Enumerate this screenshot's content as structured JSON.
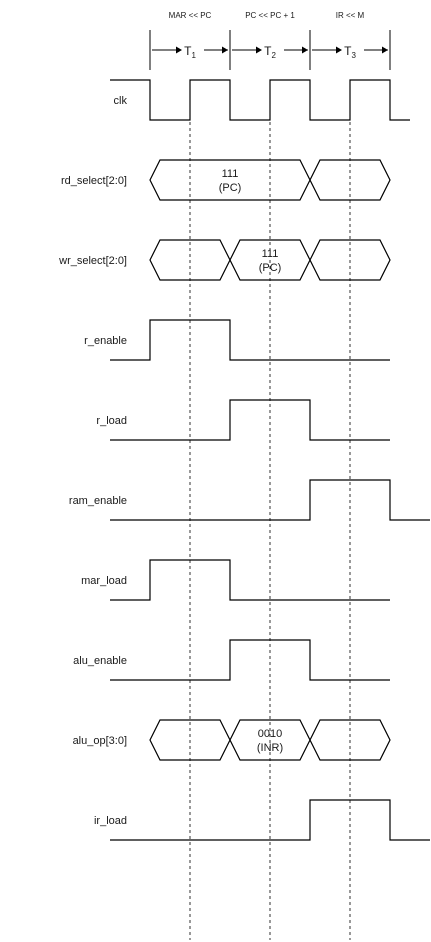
{
  "phases": [
    {
      "op": "MAR << PC",
      "t": "T",
      "sub": "1"
    },
    {
      "op": "PC << PC + 1",
      "t": "T",
      "sub": "2"
    },
    {
      "op": "IR << M",
      "t": "T",
      "sub": "3"
    }
  ],
  "signals": [
    {
      "id": "clk",
      "label": "clk",
      "type": "clock"
    },
    {
      "id": "rd_select",
      "label": "rd_select[2:0]",
      "type": "bus",
      "segments": [
        {
          "from": 0,
          "to": 2,
          "kind": "value",
          "line1": "111",
          "line2": "(PC)"
        },
        {
          "from": 2,
          "to": 3,
          "kind": "dontcare"
        }
      ]
    },
    {
      "id": "wr_select",
      "label": "wr_select[2:0]",
      "type": "bus",
      "segments": [
        {
          "from": 0,
          "to": 1,
          "kind": "dontcare"
        },
        {
          "from": 1,
          "to": 2,
          "kind": "value",
          "line1": "111",
          "line2": "(PC)"
        },
        {
          "from": 2,
          "to": 3,
          "kind": "dontcare"
        }
      ]
    },
    {
      "id": "r_enable",
      "label": "r_enable",
      "type": "digital",
      "high": [
        [
          0,
          1
        ]
      ],
      "tail": false
    },
    {
      "id": "r_load",
      "label": "r_load",
      "type": "digital",
      "high": [
        [
          1,
          2
        ]
      ],
      "tail": false
    },
    {
      "id": "ram_enable",
      "label": "ram_enable",
      "type": "digital",
      "high": [
        [
          2,
          3
        ]
      ],
      "tail": true
    },
    {
      "id": "mar_load",
      "label": "mar_load",
      "type": "digital",
      "high": [
        [
          0,
          1
        ]
      ],
      "tail": false
    },
    {
      "id": "alu_enable",
      "label": "alu_enable",
      "type": "digital",
      "high": [
        [
          1,
          2
        ]
      ],
      "tail": false
    },
    {
      "id": "alu_op",
      "label": "alu_op[3:0]",
      "type": "bus",
      "segments": [
        {
          "from": 0,
          "to": 1,
          "kind": "dontcare"
        },
        {
          "from": 1,
          "to": 2,
          "kind": "value",
          "line1": "0010",
          "line2": "(INR)"
        },
        {
          "from": 2,
          "to": 3,
          "kind": "dontcare"
        }
      ]
    },
    {
      "id": "ir_load",
      "label": "ir_load",
      "type": "digital",
      "high": [
        [
          2,
          3
        ]
      ],
      "tail": true
    }
  ]
}
